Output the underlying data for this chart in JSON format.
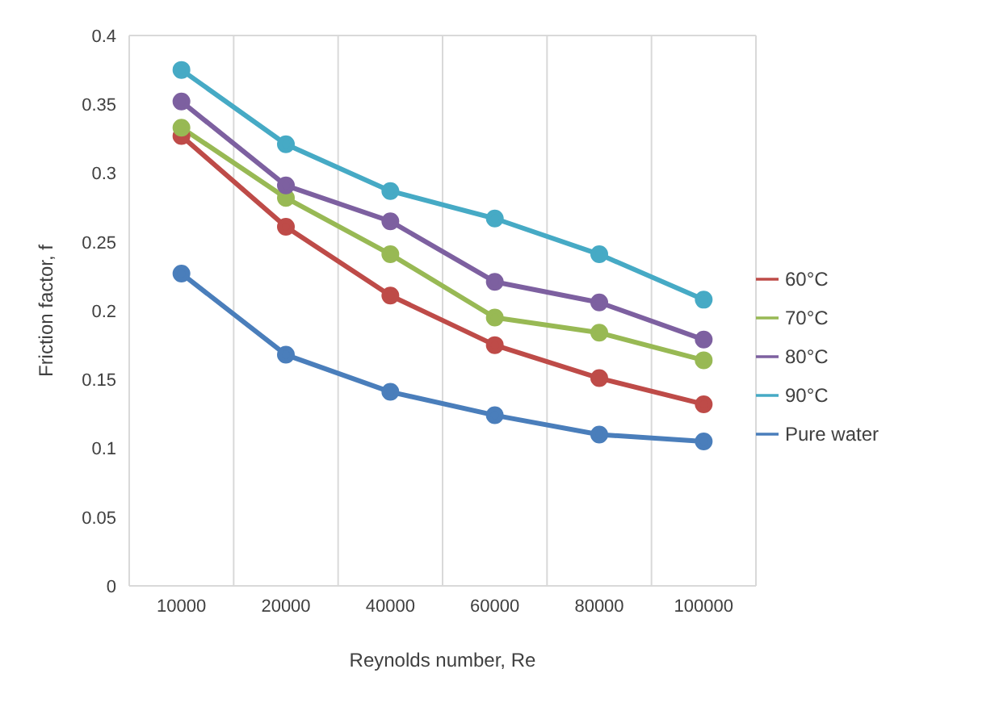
{
  "chart_data": {
    "type": "line",
    "xlabel": "Reynolds number, Re",
    "ylabel": "Friction factor, f",
    "categories": [
      "10000",
      "20000",
      "40000",
      "60000",
      "80000",
      "100000"
    ],
    "series": [
      {
        "name": "Pure water",
        "color": "#4a7ebb",
        "values": [
          0.227,
          0.168,
          0.141,
          0.124,
          0.11,
          0.105
        ]
      },
      {
        "name": "60°C",
        "color": "#be4b48",
        "values": [
          0.327,
          0.261,
          0.211,
          0.175,
          0.151,
          0.132
        ]
      },
      {
        "name": "70°C",
        "color": "#98b954",
        "values": [
          0.333,
          0.282,
          0.241,
          0.195,
          0.184,
          0.164
        ]
      },
      {
        "name": "80°C",
        "color": "#7d60a0",
        "values": [
          0.352,
          0.291,
          0.265,
          0.221,
          0.206,
          0.179
        ]
      },
      {
        "name": "90°C",
        "color": "#46aac5",
        "values": [
          0.375,
          0.321,
          0.287,
          0.267,
          0.241,
          0.208
        ]
      }
    ],
    "ylim": [
      0,
      0.4
    ],
    "yticks": [
      0,
      0.05,
      0.1,
      0.15,
      0.2,
      0.25,
      0.3,
      0.35,
      0.4
    ],
    "grid": true,
    "legend": "right",
    "marker": "circle",
    "line_style": "solid"
  }
}
